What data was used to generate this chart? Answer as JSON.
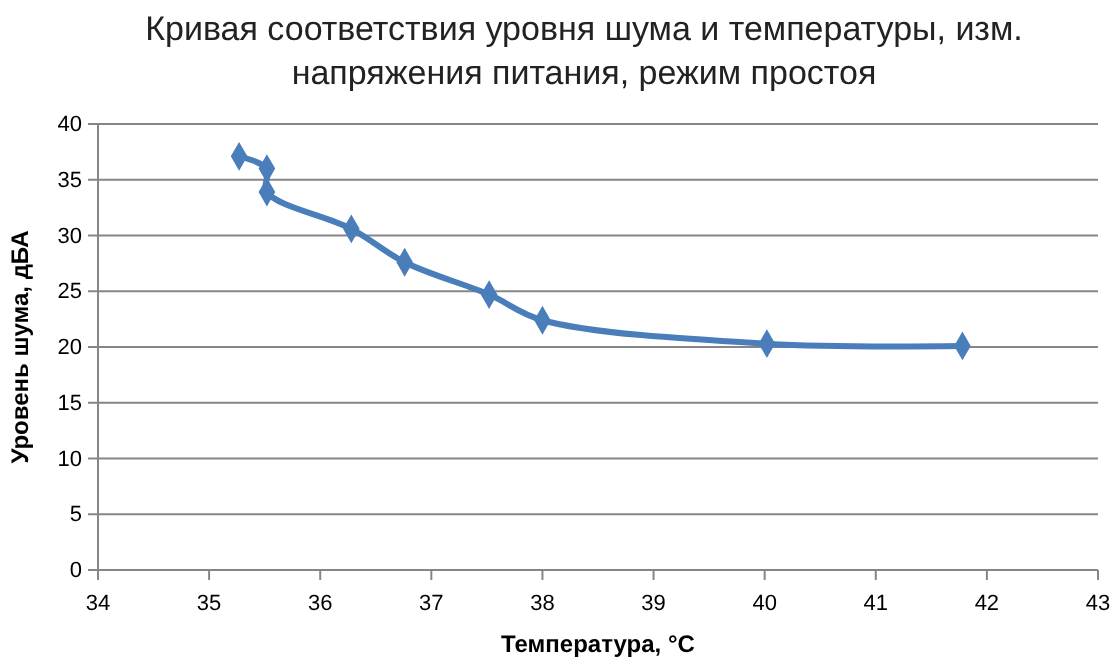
{
  "chart_data": {
    "type": "line",
    "title": "Кривая соответствия уровня шума и температуры, изм. напряжения питания, режим простоя",
    "xlabel": "Температура, °C",
    "ylabel": "Уровень шума, дБА",
    "x": [
      35.27,
      35.52,
      35.52,
      36.28,
      36.76,
      37.52,
      38.0,
      40.02,
      41.78
    ],
    "series": [
      {
        "color": "#4a7ebb",
        "values": [
          37.1,
          36.0,
          33.9,
          30.6,
          27.6,
          24.7,
          22.4,
          20.3,
          20.1
        ]
      }
    ],
    "xlim": [
      34,
      43
    ],
    "xticks": [
      34,
      35,
      36,
      37,
      38,
      39,
      40,
      41,
      42,
      43
    ],
    "ylim": [
      0,
      40
    ],
    "yticks": [
      0,
      5,
      10,
      15,
      20,
      25,
      30,
      35,
      40
    ],
    "grid": "y",
    "marker": "diamond",
    "line_style": "solid"
  }
}
